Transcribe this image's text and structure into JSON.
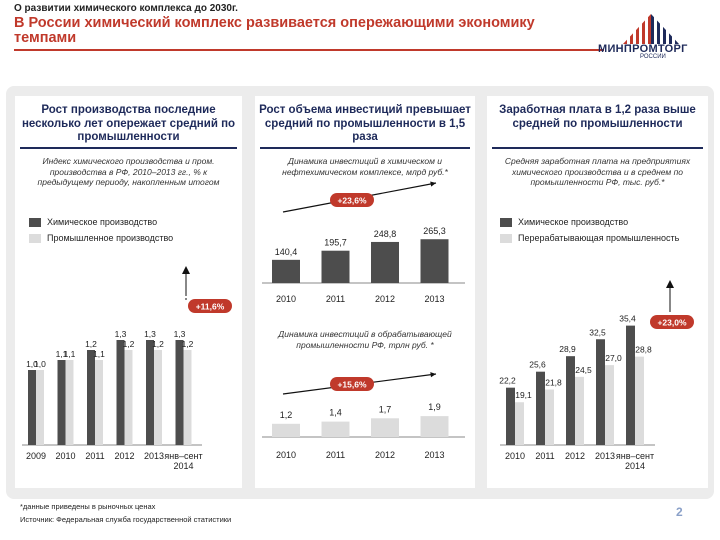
{
  "header": {
    "topline": "О развитии химического комплекса до 2030г.",
    "title": "В России химический комплекс развивается опережающими экономику темпами",
    "logo_text": "МИНПРОМТОРГ",
    "logo_sub": "РОССИИ"
  },
  "colors": {
    "dark_bar": "#4d4d4d",
    "light_bar": "#dcdcdc",
    "accent_red": "#c0392b",
    "navy": "#1e2a5a"
  },
  "panels": [
    {
      "title": "Рост производства последние несколько лет опережает средний по промышленности",
      "subtitle": "Индекс химического производства и пром. производства в РФ, 2010–2013 гг., % к предыдущему периоду, накопленным итогом",
      "legend": [
        "Химическое производство",
        "Промышленное производство"
      ],
      "badge": "+11,6%"
    },
    {
      "title": "Рост объема инвестиций превышает средний по промышленности в 1,5 раза",
      "subtitle1": "Динамика инвестиций в химическом и нефтехимическом комплексе, млрд руб.*",
      "badge1": "+23,6%",
      "subtitle2": "Динамика инвестиций в обрабатывающей промышленности РФ, трлн руб. *",
      "badge2": "+15,6%"
    },
    {
      "title": "Заработная плата  в 1,2 раза выше средней по промышленности",
      "subtitle": "Средняя заработная плата на предприятиях химического производства и в среднем по промышленности РФ, тыс. руб.*",
      "legend": [
        "Химическое производство",
        "Перерабатывающая промышленность"
      ],
      "badge": "+23,0%"
    }
  ],
  "chart_data": [
    {
      "type": "bar",
      "categories": [
        "2009",
        "2010",
        "2011",
        "2012",
        "2013",
        "янв–сент 2014"
      ],
      "series": [
        {
          "name": "Химическое производство",
          "values": [
            1.0,
            1.1,
            1.2,
            1.3,
            1.3,
            1.3
          ],
          "labels": [
            "1,0",
            "1,1",
            "1,2",
            "1,3",
            "1,3",
            "1,3"
          ]
        },
        {
          "name": "Промышленное производство",
          "values": [
            1.0,
            1.1,
            1.1,
            1.2,
            1.2,
            1.2
          ],
          "labels": [
            "1,0",
            "1,1",
            "1,1",
            "1,2",
            "1,2",
            "1,2"
          ]
        }
      ]
    },
    {
      "type": "bar",
      "categories": [
        "2010",
        "2011",
        "2012",
        "2013"
      ],
      "series": [
        {
          "values": [
            140.4,
            195.7,
            248.8,
            265.3
          ],
          "labels": [
            "140,4",
            "195,7",
            "248,8",
            "265,3"
          ]
        }
      ]
    },
    {
      "type": "bar",
      "categories": [
        "2010",
        "2011",
        "2012",
        "2013"
      ],
      "series": [
        {
          "values": [
            1.2,
            1.4,
            1.7,
            1.9
          ],
          "labels": [
            "1,2",
            "1,4",
            "1,7",
            "1,9"
          ]
        }
      ]
    },
    {
      "type": "bar",
      "categories": [
        "2010",
        "2011",
        "2012",
        "2013",
        "янв–сент 2014"
      ],
      "series": [
        {
          "name": "Химическое производство",
          "values": [
            22.2,
            25.6,
            28.9,
            32.5,
            35.4
          ],
          "labels": [
            "22,2",
            "25,6",
            "28,9",
            "32,5",
            "35,4"
          ]
        },
        {
          "name": "Перерабатывающая промышленность",
          "values": [
            19.1,
            21.8,
            24.5,
            27.0,
            28.8
          ],
          "labels": [
            "19,1",
            "21,8",
            "24,5",
            "27,0",
            "28,8"
          ]
        }
      ]
    }
  ],
  "footnotes": {
    "note": "*данные приведены в рыночных ценах",
    "source": "Источник: Федеральная служба государственной статистики"
  },
  "page_number": "2"
}
